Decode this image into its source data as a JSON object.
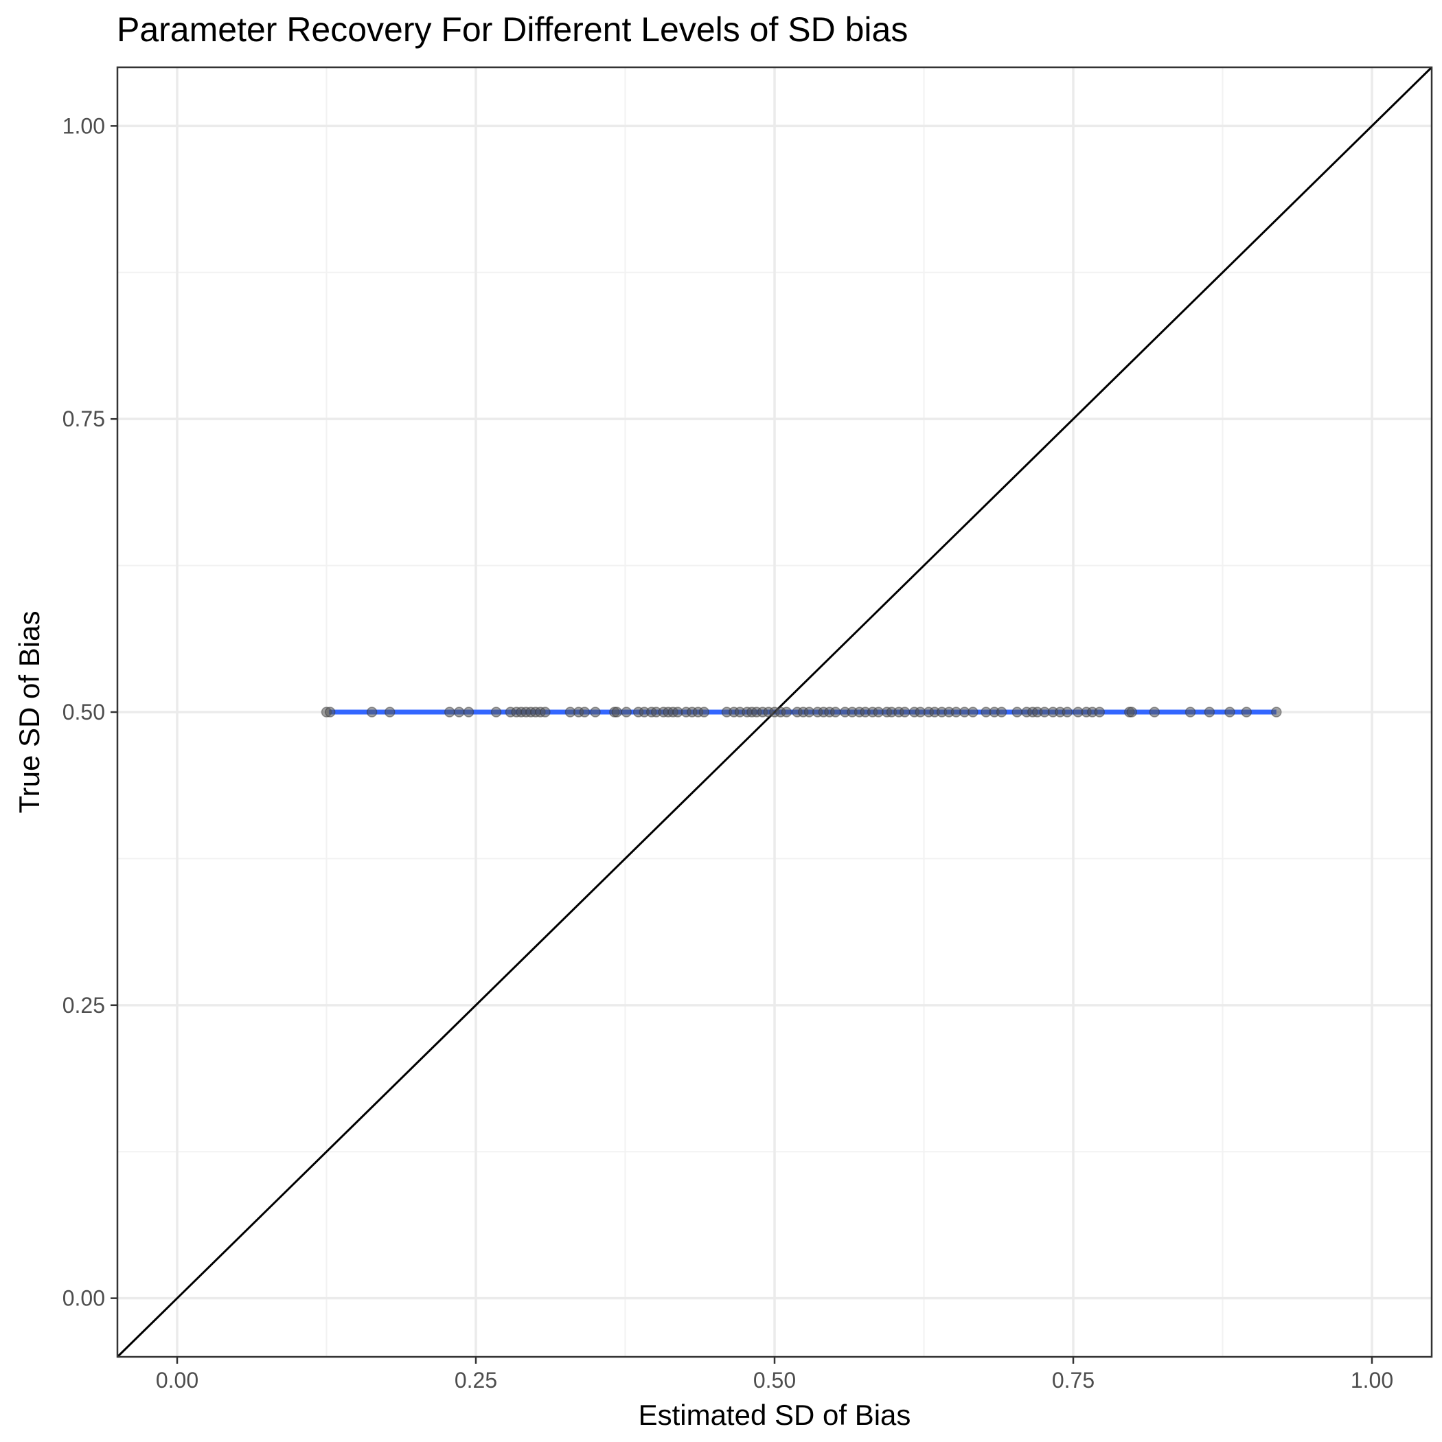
{
  "chart_data": {
    "type": "scatter",
    "title": "Parameter Recovery For Different Levels of SD bias",
    "xlabel": "Estimated SD of Bias",
    "ylabel": "True SD of Bias",
    "xlim": [
      -0.05,
      1.05
    ],
    "ylim": [
      -0.05,
      1.05
    ],
    "x_ticks": [
      0.0,
      0.25,
      0.5,
      0.75,
      1.0
    ],
    "x_tick_labels": [
      "0.00",
      "0.25",
      "0.50",
      "0.75",
      "1.00"
    ],
    "y_ticks": [
      0.0,
      0.25,
      0.5,
      0.75,
      1.0
    ],
    "y_tick_labels": [
      "0.00",
      "0.25",
      "0.50",
      "0.75",
      "1.00"
    ],
    "x_minor_ticks": [
      0.125,
      0.375,
      0.625,
      0.875
    ],
    "y_minor_ticks": [
      0.125,
      0.375,
      0.625,
      0.875
    ],
    "grid": true,
    "legend": "none",
    "points_color": "#555555",
    "fit_line_color": "#3366ff",
    "identity_line_color": "#000000",
    "identity_line": {
      "x": [
        -0.05,
        1.05
      ],
      "y": [
        -0.05,
        1.05
      ]
    },
    "fit_line": {
      "x": [
        0.127,
        0.92
      ],
      "y": [
        0.5,
        0.5
      ]
    },
    "series": [
      {
        "x": [
          0.125,
          0.128,
          0.163,
          0.178,
          0.228,
          0.236,
          0.244,
          0.267,
          0.279,
          0.284,
          0.288,
          0.292,
          0.296,
          0.3,
          0.304,
          0.308,
          0.329,
          0.336,
          0.341,
          0.35,
          0.366,
          0.368,
          0.376,
          0.386,
          0.391,
          0.397,
          0.401,
          0.407,
          0.411,
          0.415,
          0.419,
          0.426,
          0.431,
          0.436,
          0.441,
          0.46,
          0.466,
          0.471,
          0.477,
          0.481,
          0.485,
          0.49,
          0.495,
          0.5,
          0.505,
          0.51,
          0.519,
          0.524,
          0.529,
          0.536,
          0.541,
          0.546,
          0.551,
          0.559,
          0.565,
          0.571,
          0.576,
          0.582,
          0.587,
          0.594,
          0.598,
          0.604,
          0.609,
          0.617,
          0.622,
          0.629,
          0.634,
          0.64,
          0.646,
          0.652,
          0.659,
          0.666,
          0.677,
          0.684,
          0.69,
          0.703,
          0.711,
          0.716,
          0.72,
          0.726,
          0.733,
          0.739,
          0.745,
          0.754,
          0.761,
          0.766,
          0.772,
          0.797,
          0.799,
          0.818,
          0.848,
          0.864,
          0.881,
          0.895,
          0.92
        ],
        "y": [
          0.5,
          0.5,
          0.5,
          0.5,
          0.5,
          0.5,
          0.5,
          0.5,
          0.5,
          0.5,
          0.5,
          0.5,
          0.5,
          0.5,
          0.5,
          0.5,
          0.5,
          0.5,
          0.5,
          0.5,
          0.5,
          0.5,
          0.5,
          0.5,
          0.5,
          0.5,
          0.5,
          0.5,
          0.5,
          0.5,
          0.5,
          0.5,
          0.5,
          0.5,
          0.5,
          0.5,
          0.5,
          0.5,
          0.5,
          0.5,
          0.5,
          0.5,
          0.5,
          0.5,
          0.5,
          0.5,
          0.5,
          0.5,
          0.5,
          0.5,
          0.5,
          0.5,
          0.5,
          0.5,
          0.5,
          0.5,
          0.5,
          0.5,
          0.5,
          0.5,
          0.5,
          0.5,
          0.5,
          0.5,
          0.5,
          0.5,
          0.5,
          0.5,
          0.5,
          0.5,
          0.5,
          0.5,
          0.5,
          0.5,
          0.5,
          0.5,
          0.5,
          0.5,
          0.5,
          0.5,
          0.5,
          0.5,
          0.5,
          0.5,
          0.5,
          0.5,
          0.5,
          0.5,
          0.5,
          0.5,
          0.5,
          0.5,
          0.5,
          0.5,
          0.5
        ]
      }
    ]
  }
}
